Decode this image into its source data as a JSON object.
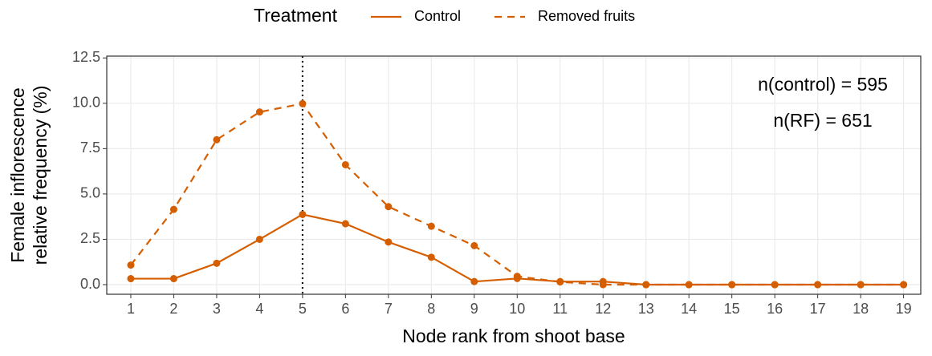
{
  "chart_data": {
    "type": "line",
    "legend_title": "Treatment",
    "xlabel": "Node rank from shoot base",
    "ylabel": [
      "Female inflorescence",
      "relative frequency (%)"
    ],
    "x": [
      1,
      2,
      3,
      4,
      5,
      6,
      7,
      8,
      9,
      10,
      11,
      12,
      13,
      14,
      15,
      16,
      17,
      18,
      19
    ],
    "series": [
      {
        "name": "Control",
        "color": "#d55e00",
        "dash": "solid",
        "values": [
          0.33,
          0.33,
          1.18,
          2.5,
          3.87,
          3.36,
          2.35,
          1.51,
          0.17,
          0.34,
          0.17,
          0.17,
          0,
          0,
          0,
          0,
          0,
          0,
          0
        ]
      },
      {
        "name": "Removed fruits",
        "color": "#d55e00",
        "dash": "dashed",
        "values": [
          1.08,
          4.15,
          7.99,
          9.52,
          9.98,
          6.61,
          4.3,
          3.22,
          2.15,
          0.46,
          0.15,
          0,
          0,
          0,
          0,
          0,
          0,
          0,
          0
        ]
      }
    ],
    "vline": 5,
    "annotations": [
      "n(control) = 595",
      "n(RF) = 651"
    ],
    "xlim": [
      0.44,
      19.4
    ],
    "ylim": [
      -0.53,
      12.6
    ],
    "xticks": [
      1,
      2,
      3,
      4,
      5,
      6,
      7,
      8,
      9,
      10,
      11,
      12,
      13,
      14,
      15,
      16,
      17,
      18,
      19
    ],
    "yticks": [
      {
        "value": 0,
        "label": "0.0"
      },
      {
        "value": 2.5,
        "label": "2.5"
      },
      {
        "value": 5,
        "label": "5.0"
      },
      {
        "value": 7.5,
        "label": "7.5"
      },
      {
        "value": 10,
        "label": "10.0"
      },
      {
        "value": 12.5,
        "label": "12.5"
      }
    ],
    "grid": true,
    "legend_position": "top"
  }
}
